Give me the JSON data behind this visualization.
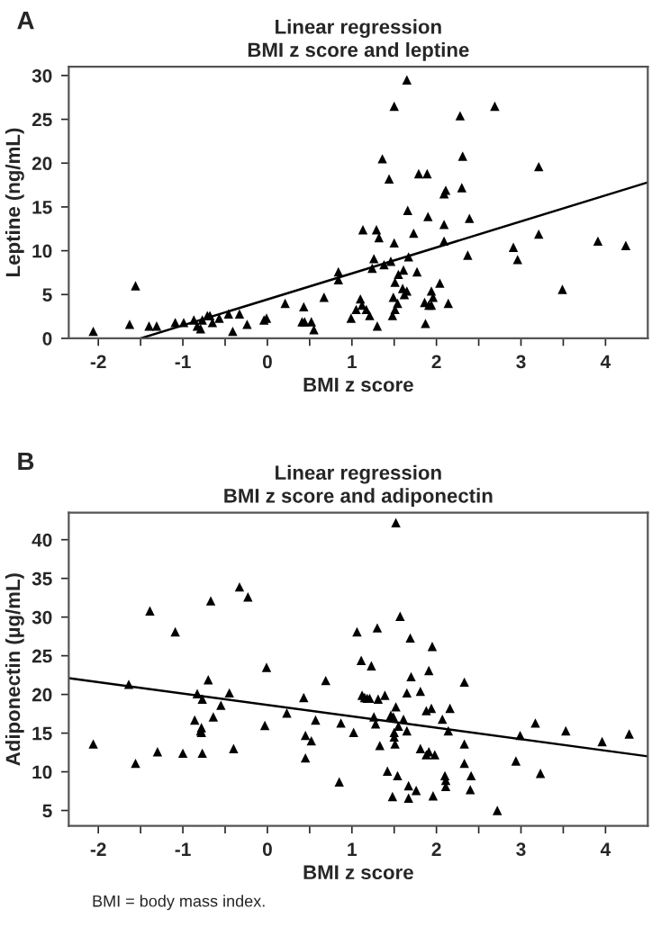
{
  "chart_data": [
    {
      "type": "scatter",
      "title": "Linear regression",
      "subtitle": "BMI z score and leptine",
      "xlabel": "BMI z score",
      "ylabel": "Leptine (ng/mL)",
      "annotations": [
        "A"
      ],
      "marker": "triangle",
      "grid": false,
      "legend": false,
      "xlim": [
        -2.35,
        4.5
      ],
      "xticks": [
        -2,
        {
          "value": -1.5,
          "label": null
        },
        -1,
        {
          "value": -0.5,
          "label": null
        },
        0,
        {
          "value": 0.5,
          "label": null
        },
        1,
        {
          "value": 1.5,
          "label": null
        },
        2,
        {
          "value": 2.5,
          "label": null
        },
        3,
        {
          "value": 3.5,
          "label": null
        },
        4
      ],
      "ylim": [
        0,
        31
      ],
      "yticks": [
        0,
        5,
        10,
        15,
        20,
        25,
        30
      ],
      "series": [
        {
          "color": "#000000",
          "x": [
            -2.06,
            -1.63,
            -1.56,
            -1.4,
            -1.31,
            -1.09,
            -0.99,
            -0.87,
            -0.83,
            -0.79,
            -0.77,
            -0.71,
            -0.68,
            -0.65,
            -0.57,
            -0.46,
            -0.41,
            -0.33,
            -0.24,
            -0.04,
            -0.01,
            0.21,
            0.41,
            0.43,
            0.44,
            0.52,
            0.55,
            0.67,
            0.84,
            0.84,
            0.99,
            1.05,
            1.1,
            1.12,
            1.17,
            1.21,
            1.13,
            1.26,
            1.24,
            1.3,
            1.29,
            1.32,
            1.36,
            1.38,
            1.44,
            1.46,
            1.48,
            1.49,
            1.5,
            1.5,
            1.51,
            1.51,
            1.54,
            1.55,
            1.6,
            1.61,
            1.62,
            1.65,
            1.65,
            1.66,
            1.67,
            1.73,
            1.77,
            1.79,
            1.87,
            1.89,
            1.9,
            1.86,
            1.91,
            1.94,
            1.94,
            1.96,
            2.04,
            2.09,
            2.11,
            2.09,
            2.09,
            2.14,
            2.28,
            2.31,
            2.3,
            2.37,
            2.39,
            2.69,
            2.91,
            2.96,
            3.21,
            3.21,
            3.49,
            3.91,
            4.24
          ],
          "values": [
            0.8,
            1.6,
            6.0,
            1.4,
            1.4,
            1.8,
            1.8,
            2.1,
            1.4,
            1.1,
            2.1,
            2.6,
            2.6,
            1.8,
            2.3,
            2.8,
            0.8,
            2.8,
            1.6,
            2.1,
            2.3,
            4.0,
            1.9,
            3.6,
            1.9,
            1.9,
            1.0,
            4.7,
            7.6,
            6.7,
            2.3,
            3.3,
            4.5,
            3.8,
            3.3,
            2.6,
            12.4,
            9.1,
            8.0,
            1.4,
            12.4,
            11.5,
            20.5,
            8.4,
            18.2,
            8.8,
            2.6,
            4.7,
            26.5,
            10.9,
            3.3,
            6.4,
            4.0,
            7.3,
            5.7,
            7.8,
            5.0,
            5.4,
            29.5,
            14.6,
            9.3,
            12.0,
            7.6,
            18.8,
            1.7,
            18.8,
            13.9,
            4.1,
            3.8,
            5.4,
            3.8,
            4.7,
            6.3,
            16.5,
            16.9,
            13.0,
            11.1,
            4.0,
            25.4,
            20.8,
            17.2,
            9.5,
            13.7,
            26.5,
            10.4,
            9.0,
            19.6,
            11.9,
            5.6,
            11.1,
            10.6
          ]
        },
        {
          "type": "line",
          "marker": "none",
          "color": "#000000",
          "x": [
            -1.5,
            4.5
          ],
          "values": [
            0,
            17.8
          ]
        }
      ]
    },
    {
      "type": "scatter",
      "title": "Linear regression",
      "subtitle": "BMI z score and adiponectin",
      "xlabel": "BMI z score",
      "ylabel": "Adiponectin (µg/mL)",
      "annotations": [
        "B",
        "BMI = body mass index."
      ],
      "marker": "triangle",
      "grid": false,
      "legend": false,
      "xlim": [
        -2.35,
        4.5
      ],
      "xticks": [
        -2,
        {
          "value": -1.5,
          "label": null
        },
        -1,
        {
          "value": -0.5,
          "label": null
        },
        0,
        {
          "value": 0.5,
          "label": null
        },
        1,
        {
          "value": 1.5,
          "label": null
        },
        2,
        {
          "value": 2.5,
          "label": null
        },
        3,
        {
          "value": 3.5,
          "label": null
        },
        4
      ],
      "ylim": [
        3,
        43.5
      ],
      "yticks": [
        5,
        10,
        15,
        20,
        25,
        30,
        35,
        40
      ],
      "series": [
        {
          "color": "#000000",
          "x": [
            -2.06,
            -1.64,
            -1.56,
            -1.39,
            -1.3,
            -1.09,
            -1.0,
            -0.86,
            -0.83,
            -0.79,
            -0.78,
            -0.78,
            -0.77,
            -0.77,
            -0.7,
            -0.67,
            -0.64,
            -0.55,
            -0.45,
            -0.4,
            -0.33,
            -0.23,
            -0.03,
            -0.01,
            0.23,
            0.43,
            0.45,
            0.45,
            0.52,
            0.57,
            0.69,
            0.85,
            0.87,
            1.02,
            1.06,
            1.11,
            1.12,
            1.15,
            1.18,
            1.21,
            1.23,
            1.26,
            1.28,
            1.3,
            1.31,
            1.33,
            1.39,
            1.42,
            1.46,
            1.48,
            1.49,
            1.5,
            1.5,
            1.51,
            1.52,
            1.52,
            1.54,
            1.55,
            1.57,
            1.61,
            1.65,
            1.65,
            1.67,
            1.69,
            1.7,
            1.67,
            1.76,
            1.81,
            1.81,
            1.88,
            1.88,
            1.91,
            1.91,
            1.94,
            1.95,
            1.96,
            1.98,
            2.07,
            2.1,
            2.11,
            2.11,
            2.14,
            2.16,
            2.33,
            2.33,
            2.33,
            2.4,
            2.41,
            2.72,
            2.94,
            2.99,
            3.17,
            3.23,
            3.53,
            3.96,
            4.28
          ],
          "values": [
            13.6,
            21.3,
            11.1,
            30.8,
            12.6,
            28.1,
            12.4,
            16.7,
            20.1,
            15.3,
            15.7,
            15.1,
            12.4,
            19.4,
            21.9,
            32.1,
            17.1,
            18.6,
            20.2,
            13.0,
            33.9,
            32.6,
            16.0,
            23.5,
            17.6,
            19.6,
            14.7,
            11.8,
            14.0,
            16.7,
            21.8,
            8.7,
            16.3,
            15.1,
            28.1,
            24.4,
            19.9,
            19.6,
            19.5,
            19.5,
            23.7,
            17.1,
            16.2,
            28.6,
            19.4,
            13.4,
            19.9,
            10.1,
            17.3,
            6.8,
            17.1,
            15.1,
            14.5,
            13.6,
            18.4,
            42.2,
            9.5,
            15.9,
            30.1,
            16.8,
            20.2,
            15.3,
            8.2,
            27.3,
            22.3,
            6.6,
            7.6,
            20.4,
            13.0,
            17.9,
            12.2,
            23.1,
            12.6,
            18.2,
            26.2,
            6.9,
            12.2,
            16.8,
            9.5,
            8.9,
            8.1,
            15.3,
            18.2,
            21.6,
            13.6,
            11.1,
            7.7,
            9.5,
            5.0,
            11.4,
            14.7,
            16.3,
            9.8,
            15.3,
            13.9,
            14.9
          ]
        },
        {
          "type": "line",
          "marker": "none",
          "color": "#000000",
          "x": [
            -2.35,
            4.5
          ],
          "values": [
            22.1,
            12.0
          ]
        }
      ]
    }
  ]
}
